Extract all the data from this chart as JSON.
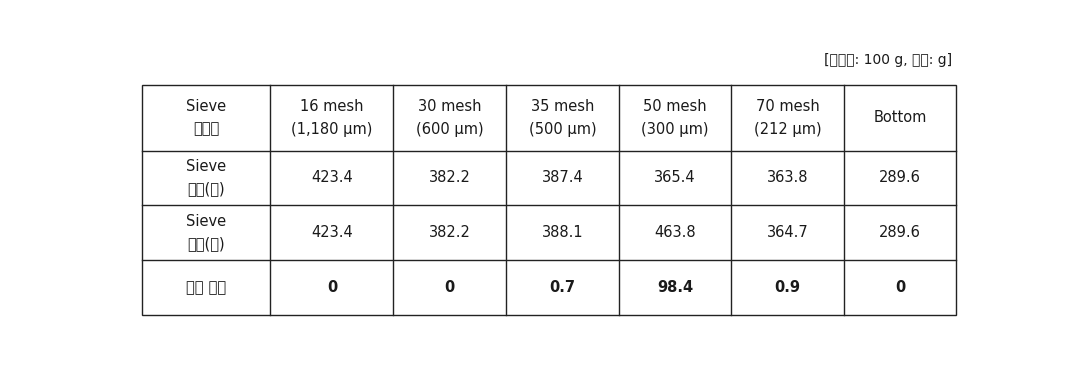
{
  "caption": "[샘플양: 100 g, 단위: g]",
  "col_headers": [
    "Sieve\n사이즈",
    "16 mesh\n(1,180 μm)",
    "30 mesh\n(600 μm)",
    "35 mesh\n(500 μm)",
    "50 mesh\n(300 μm)",
    "70 mesh\n(212 μm)",
    "Bottom"
  ],
  "row1_label": "Sieve\n무게(전)",
  "row2_label": "Sieve\n무게(후)",
  "row3_label": "제품 무게",
  "row1_values": [
    "423.4",
    "382.2",
    "387.4",
    "365.4",
    "363.8",
    "289.6"
  ],
  "row2_values": [
    "423.4",
    "382.2",
    "388.1",
    "463.8",
    "364.7",
    "289.6"
  ],
  "row3_values": [
    "0",
    "0",
    "0.7",
    "98.4",
    "0.9",
    "0"
  ],
  "bg_color": "#ffffff",
  "text_color": "#1a1a1a",
  "border_color": "#222222",
  "header_fontsize": 10.5,
  "cell_fontsize": 10.5,
  "caption_fontsize": 10,
  "fig_width": 10.72,
  "fig_height": 3.68
}
